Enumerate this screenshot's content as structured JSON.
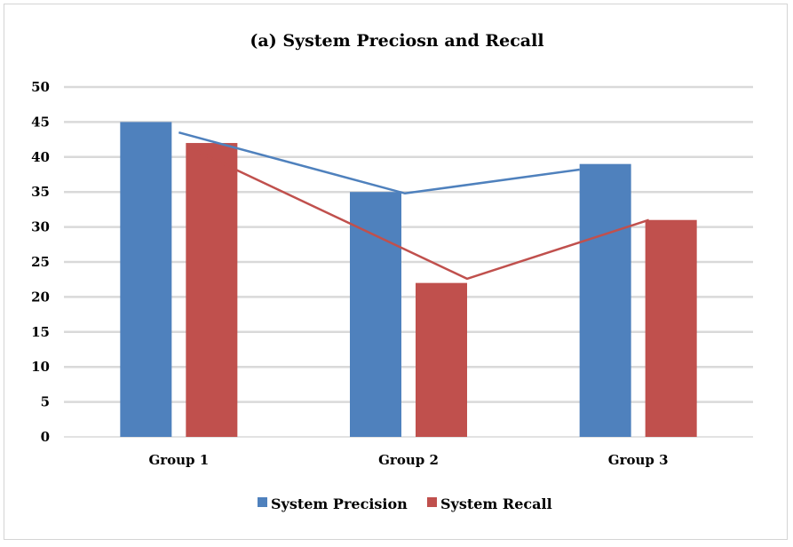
{
  "chart_data": {
    "type": "bar",
    "title": "(a) System Preciosn and Recall",
    "categories": [
      "Group 1",
      "Group 2",
      "Group 3"
    ],
    "series": [
      {
        "name": "System Precision",
        "values": [
          45,
          35,
          39
        ],
        "color": "#4f81bd"
      },
      {
        "name": "System Recall",
        "values": [
          42,
          22,
          31
        ],
        "color": "#c0504d"
      }
    ],
    "trend_lines": true,
    "ylim": [
      0,
      50
    ],
    "yticks": [
      0,
      5,
      10,
      15,
      20,
      25,
      30,
      35,
      40,
      45,
      50
    ],
    "grid": true,
    "legend_position": "bottom",
    "gridline_color": "#d9d9d9"
  }
}
